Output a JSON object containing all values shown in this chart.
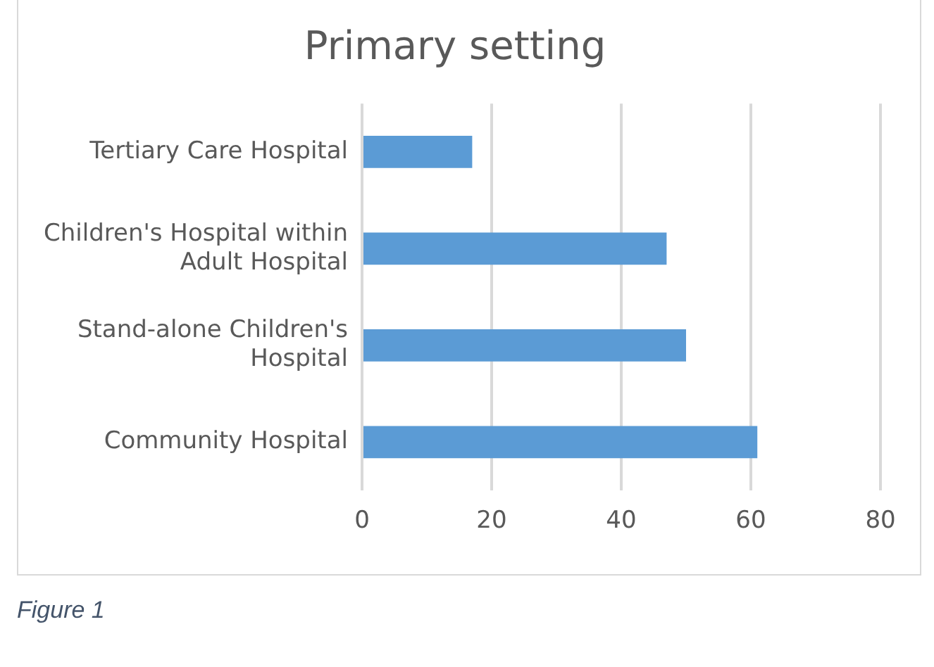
{
  "chart_data": {
    "type": "bar",
    "orientation": "horizontal",
    "title": "Primary setting",
    "categories": [
      "Tertiary Care Hospital",
      "Children's Hospital within Adult Hospital",
      "Stand-alone Children's Hospital",
      "Community Hospital"
    ],
    "values": [
      17,
      47,
      50,
      61
    ],
    "color": "#5b9bd5",
    "xlim": [
      0,
      80
    ],
    "xticks": [
      0,
      20,
      40,
      60,
      80
    ],
    "grid": "x",
    "legend": false,
    "annotations": [
      "Figure 1"
    ]
  }
}
